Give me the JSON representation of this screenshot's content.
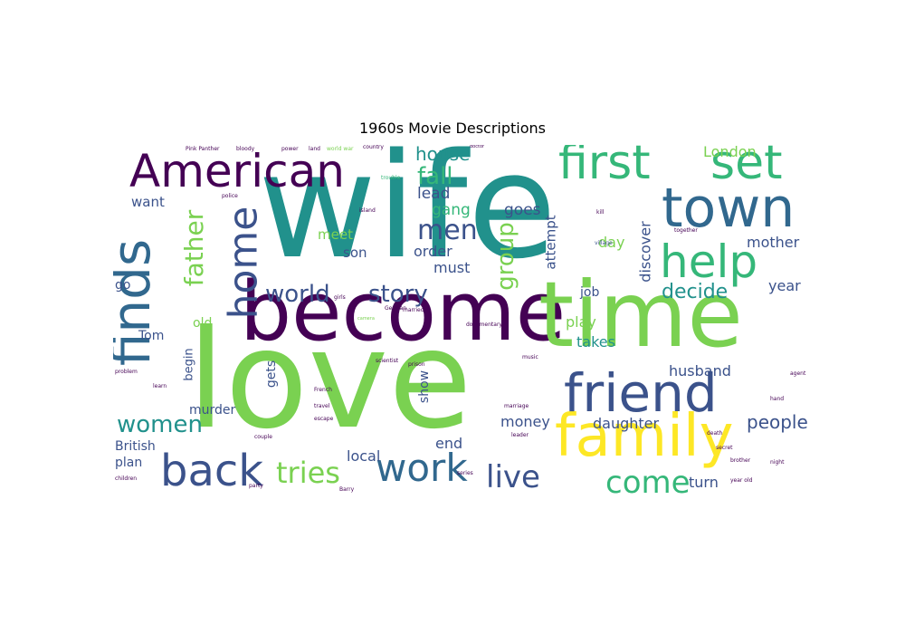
{
  "title": "1960s Movie Descriptions",
  "palette": {
    "purple": "#440154",
    "indigo": "#3b528b",
    "blue": "#31688e",
    "teal": "#21918c",
    "green": "#35b779",
    "lime": "#7ad151",
    "yellow": "#fde725"
  },
  "words": [
    {
      "text": "wife",
      "color": "#21918c"
    },
    {
      "text": "love",
      "color": "#7ad151"
    },
    {
      "text": "become",
      "color": "#440154"
    },
    {
      "text": "time",
      "color": "#7ad151"
    },
    {
      "text": "family",
      "color": "#fde725"
    },
    {
      "text": "friend",
      "color": "#3b528b"
    },
    {
      "text": "town",
      "color": "#31688e"
    },
    {
      "text": "American",
      "color": "#440154"
    },
    {
      "text": "first",
      "color": "#35b779"
    },
    {
      "text": "set",
      "color": "#35b779"
    },
    {
      "text": "help",
      "color": "#35b779"
    },
    {
      "text": "finds",
      "color": "#31688e"
    },
    {
      "text": "home",
      "color": "#3b528b"
    },
    {
      "text": "back",
      "color": "#3b528b"
    },
    {
      "text": "work",
      "color": "#31688e"
    },
    {
      "text": "live",
      "color": "#3b528b"
    },
    {
      "text": "come",
      "color": "#35b779"
    },
    {
      "text": "tries",
      "color": "#7ad151"
    },
    {
      "text": "story",
      "color": "#3b528b"
    },
    {
      "text": "world",
      "color": "#3b528b"
    },
    {
      "text": "men",
      "color": "#3b528b"
    },
    {
      "text": "women",
      "color": "#21918c"
    },
    {
      "text": "father",
      "color": "#7ad151"
    },
    {
      "text": "fall",
      "color": "#35b779"
    },
    {
      "text": "group",
      "color": "#7ad151"
    },
    {
      "text": "decide",
      "color": "#21918c"
    },
    {
      "text": "people",
      "color": "#3b528b"
    },
    {
      "text": "house",
      "color": "#21918c"
    },
    {
      "text": "gang",
      "color": "#35b779"
    },
    {
      "text": "lead",
      "color": "#3b528b"
    },
    {
      "text": "goes",
      "color": "#3b528b"
    },
    {
      "text": "London",
      "color": "#7ad151"
    },
    {
      "text": "mother",
      "color": "#3b528b"
    },
    {
      "text": "year",
      "color": "#3b528b"
    },
    {
      "text": "husband",
      "color": "#3b528b"
    },
    {
      "text": "daughter",
      "color": "#3b528b"
    },
    {
      "text": "money",
      "color": "#3b528b"
    },
    {
      "text": "end",
      "color": "#3b528b"
    },
    {
      "text": "local",
      "color": "#3b528b"
    },
    {
      "text": "turn",
      "color": "#3b528b"
    },
    {
      "text": "play",
      "color": "#7ad151"
    },
    {
      "text": "takes",
      "color": "#21918c"
    },
    {
      "text": "job",
      "color": "#3b528b"
    },
    {
      "text": "discover",
      "color": "#3b528b"
    },
    {
      "text": "attempt",
      "color": "#3b528b"
    },
    {
      "text": "day",
      "color": "#7ad151"
    },
    {
      "text": "meet",
      "color": "#7ad151"
    },
    {
      "text": "order",
      "color": "#3b528b"
    },
    {
      "text": "must",
      "color": "#3b528b"
    },
    {
      "text": "son",
      "color": "#3b528b"
    },
    {
      "text": "want",
      "color": "#3b528b"
    },
    {
      "text": "old",
      "color": "#7ad151"
    },
    {
      "text": "Tom",
      "color": "#3b528b"
    },
    {
      "text": "begin",
      "color": "#3b528b"
    },
    {
      "text": "short",
      "color": "#7ad151"
    },
    {
      "text": "gets",
      "color": "#3b528b"
    },
    {
      "text": "murder",
      "color": "#3b528b"
    },
    {
      "text": "British",
      "color": "#3b528b"
    },
    {
      "text": "plan",
      "color": "#3b528b"
    },
    {
      "text": "show",
      "color": "#3b528b"
    },
    {
      "text": "go",
      "color": "#3b528b"
    },
    {
      "text": "Pink Panther",
      "color": "#440154"
    },
    {
      "text": "bloody",
      "color": "#440154"
    },
    {
      "text": "power",
      "color": "#440154"
    },
    {
      "text": "land",
      "color": "#440154"
    },
    {
      "text": "world war",
      "color": "#7ad151"
    },
    {
      "text": "country",
      "color": "#440154"
    },
    {
      "text": "doctor",
      "color": "#440154"
    },
    {
      "text": "police",
      "color": "#440154"
    },
    {
      "text": "island",
      "color": "#440154"
    },
    {
      "text": "trouble",
      "color": "#35b779"
    },
    {
      "text": "camera",
      "color": "#7ad151"
    },
    {
      "text": "village",
      "color": "#3b528b"
    },
    {
      "text": "together",
      "color": "#440154"
    },
    {
      "text": "children",
      "color": "#440154"
    },
    {
      "text": "German",
      "color": "#440154"
    },
    {
      "text": "French",
      "color": "#440154"
    },
    {
      "text": "married",
      "color": "#440154"
    },
    {
      "text": "travel",
      "color": "#440154"
    },
    {
      "text": "marriage",
      "color": "#440154"
    },
    {
      "text": "escape",
      "color": "#440154"
    },
    {
      "text": "prison",
      "color": "#440154"
    },
    {
      "text": "kill",
      "color": "#440154"
    },
    {
      "text": "hand",
      "color": "#440154"
    },
    {
      "text": "Barry",
      "color": "#440154"
    },
    {
      "text": "year old",
      "color": "#440154"
    },
    {
      "text": "night",
      "color": "#440154"
    },
    {
      "text": "death",
      "color": "#440154"
    },
    {
      "text": "couple",
      "color": "#440154"
    },
    {
      "text": "party",
      "color": "#440154"
    },
    {
      "text": "series",
      "color": "#440154"
    },
    {
      "text": "documentary",
      "color": "#440154"
    },
    {
      "text": "music",
      "color": "#440154"
    },
    {
      "text": "scientist",
      "color": "#440154"
    },
    {
      "text": "problem",
      "color": "#440154"
    },
    {
      "text": "learn",
      "color": "#440154"
    },
    {
      "text": "leader",
      "color": "#440154"
    },
    {
      "text": "secret",
      "color": "#440154"
    },
    {
      "text": "agent",
      "color": "#440154"
    },
    {
      "text": "girls",
      "color": "#440154"
    },
    {
      "text": "brother",
      "color": "#440154"
    }
  ]
}
